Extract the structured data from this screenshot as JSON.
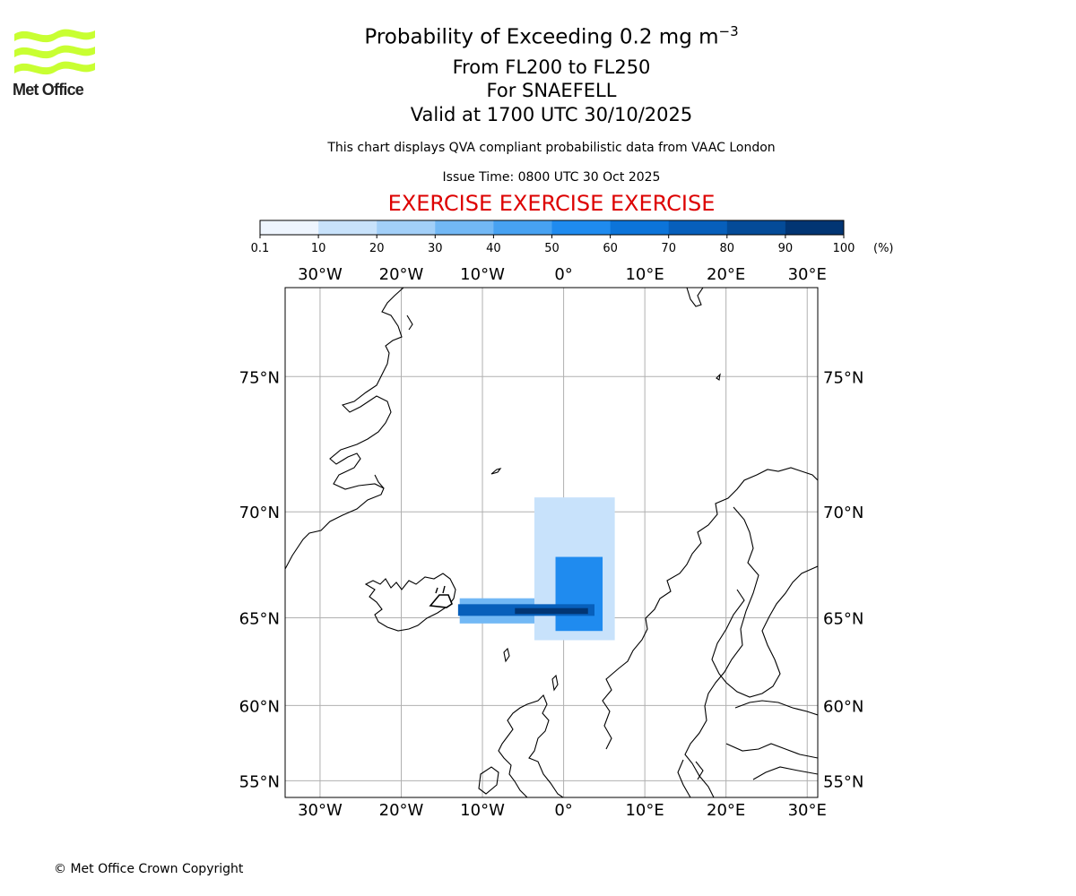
{
  "logo": {
    "text": "Met Office",
    "accent": "#c8ff32"
  },
  "title": {
    "main_prefix": "Probability of Exceeding 0.2 mg m",
    "main_superscript": "−3",
    "line2": "From FL200 to FL250",
    "line3": "For SNAEFELL",
    "line4": "Valid at 1700 UTC 30/10/2025",
    "subtitle": "This chart displays QVA compliant probabilistic data from VAAC London",
    "issue_time": "Issue Time: 0800 UTC 30 Oct 2025",
    "exercise": "EXERCISE EXERCISE EXERCISE",
    "exercise_color": "#dd0000"
  },
  "colorbar": {
    "ticks": [
      "0.1",
      "10",
      "20",
      "30",
      "40",
      "50",
      "60",
      "70",
      "80",
      "90",
      "100"
    ],
    "unit": "(%)",
    "colors": [
      "#eef5fe",
      "#c8e2fb",
      "#a2cff8",
      "#72b8f5",
      "#47a2f2",
      "#1f8bef",
      "#0c74d9",
      "#075fbb",
      "#044b98",
      "#023573"
    ]
  },
  "map": {
    "lon_labels": [
      "30°W",
      "20°W",
      "10°W",
      "0°",
      "10°E",
      "20°E",
      "30°E"
    ],
    "lat_labels": [
      "75°N",
      "70°N",
      "65°N",
      "60°N",
      "55°N"
    ],
    "lon_values": [
      -30,
      -20,
      -10,
      0,
      10,
      20,
      30
    ],
    "lat_values": [
      75,
      70,
      65,
      60,
      55
    ],
    "extent": {
      "lon": [
        -34.3,
        31.3
      ],
      "lat": [
        53.8,
        77.6
      ]
    },
    "volcano": "SNAEFELL",
    "plume": [
      {
        "lon_range": [
          -12.8,
          5.6
        ],
        "lat_range": [
          64.7,
          66.0
        ],
        "probability_percent": 30
      },
      {
        "lon_range": [
          -3.6,
          6.3
        ],
        "lat_range": [
          63.8,
          70.6
        ],
        "probability_percent": 10
      },
      {
        "lon_range": [
          -1.0,
          4.8
        ],
        "lat_range": [
          64.3,
          68.0
        ],
        "probability_percent": 55
      },
      {
        "lon_range": [
          -13.0,
          3.8
        ],
        "lat_range": [
          65.1,
          65.7
        ],
        "probability_percent": 75
      },
      {
        "lon_range": [
          -6.0,
          3.0
        ],
        "lat_range": [
          65.2,
          65.5
        ],
        "probability_percent": 90
      }
    ]
  },
  "copyright": "© Met Office Crown Copyright"
}
